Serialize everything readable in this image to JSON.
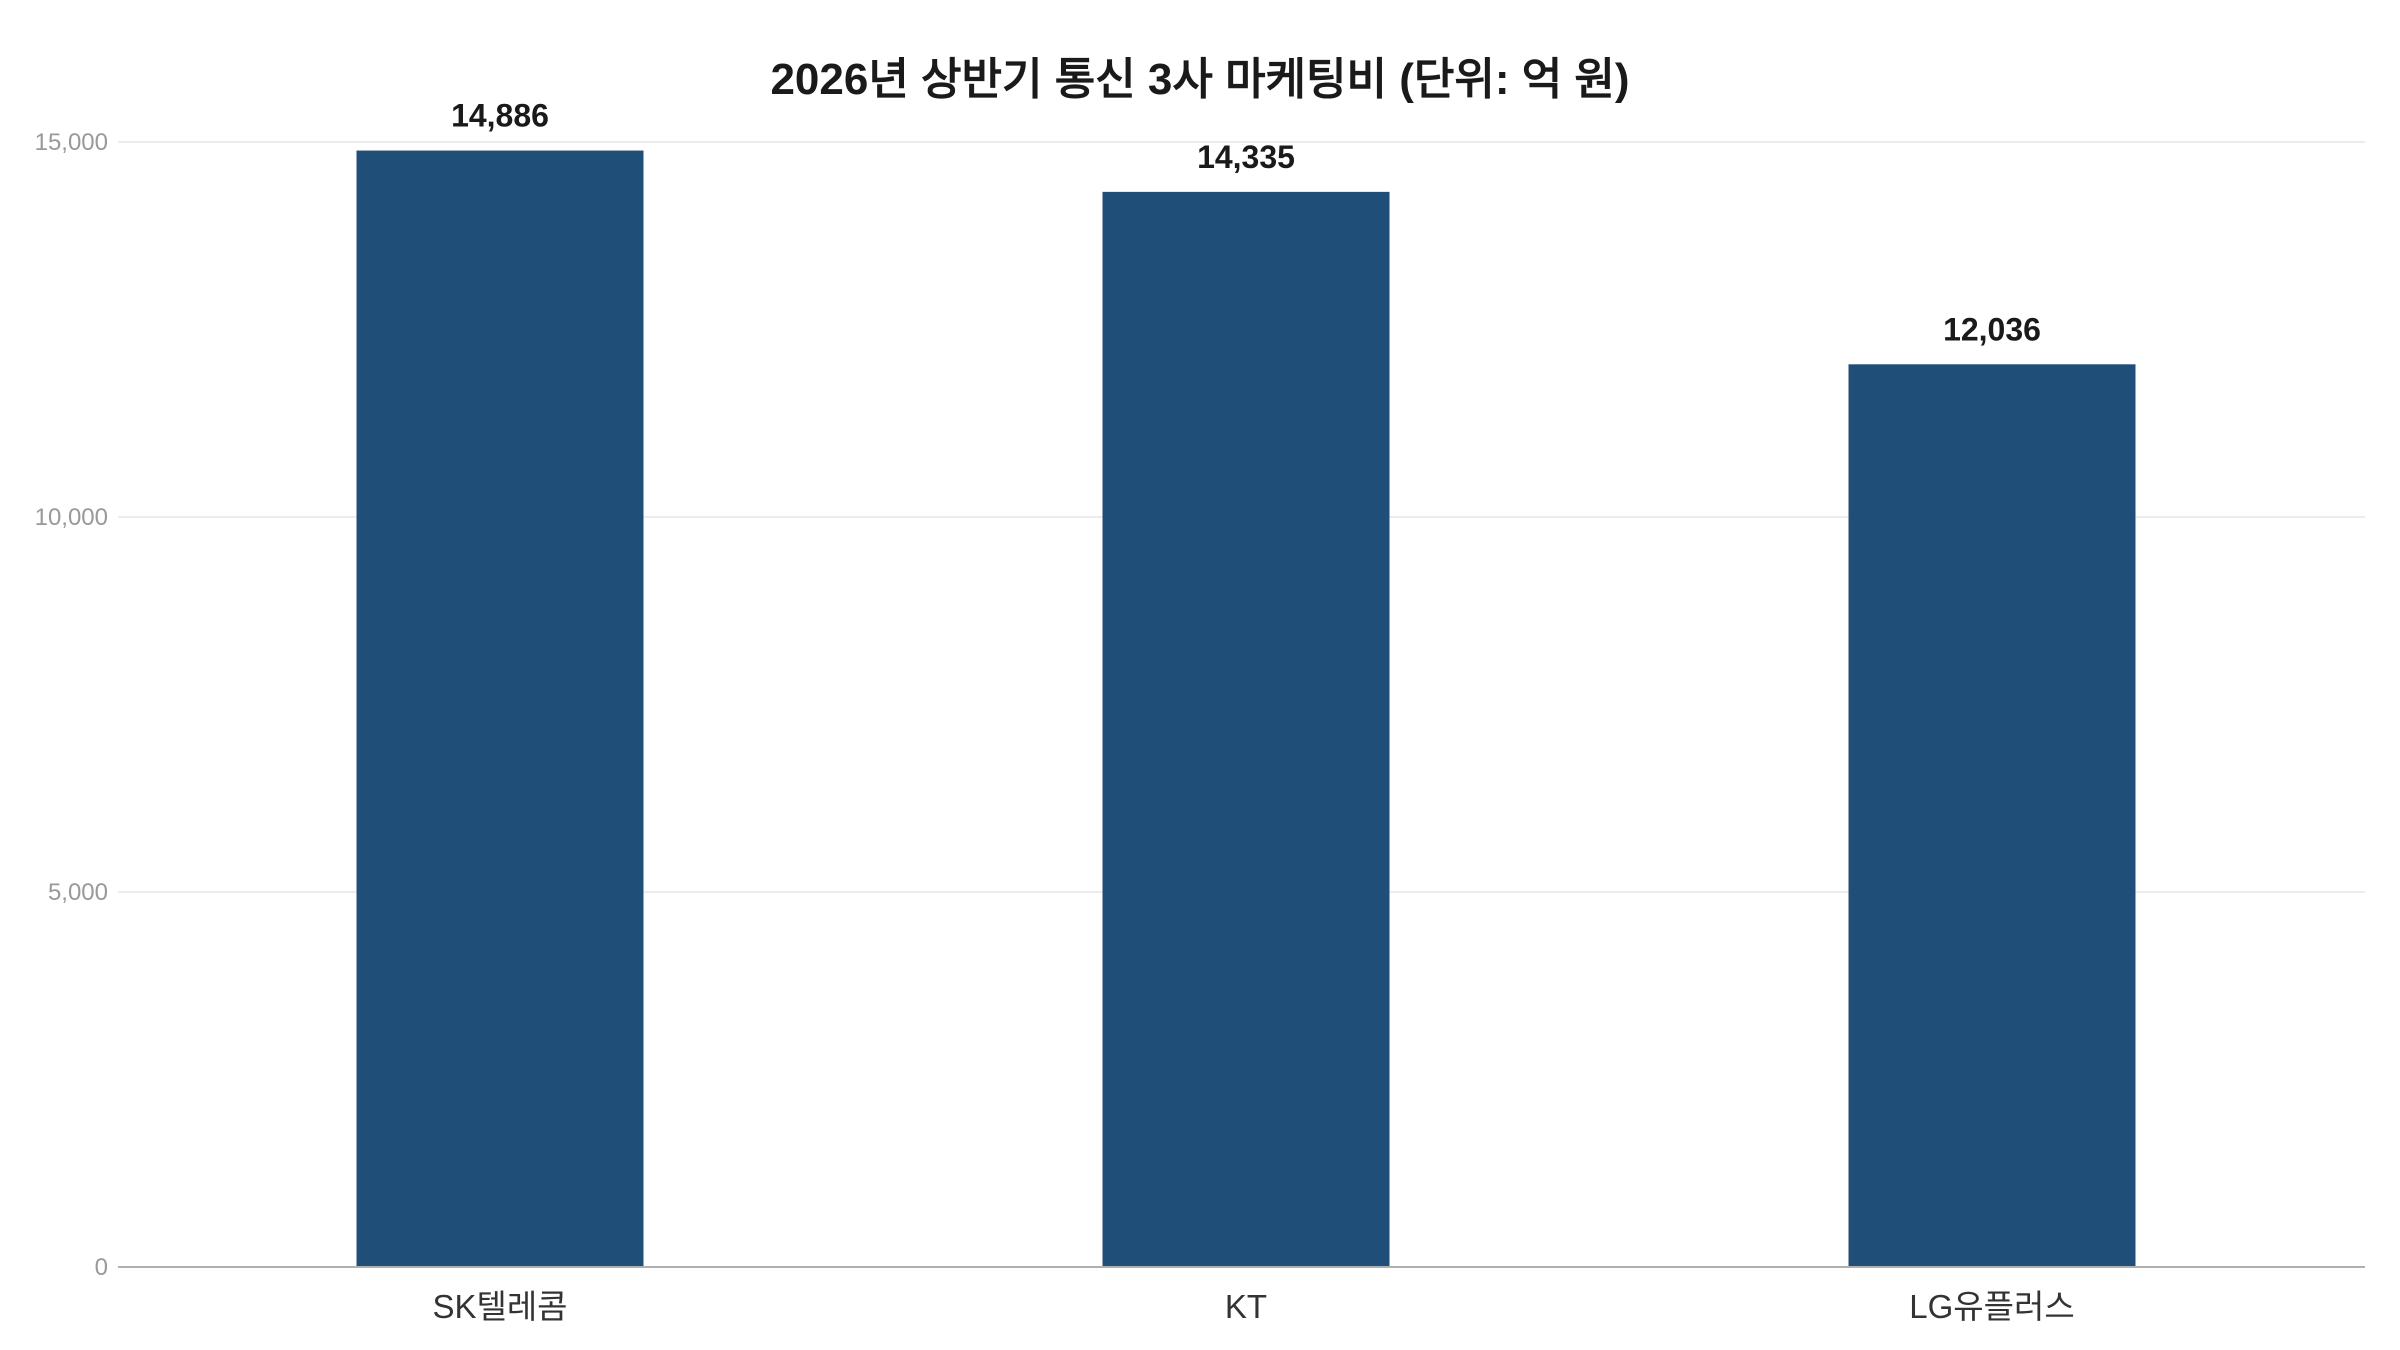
{
  "chart_data": {
    "type": "bar",
    "title": "2026년 상반기 통신 3사 마케팅비 (단위: 억 원)",
    "xlabel": "",
    "ylabel": "",
    "categories": [
      "SK텔레콤",
      "KT",
      "LG유플러스"
    ],
    "values": [
      14886,
      14335,
      12036
    ],
    "value_labels": [
      "14,886",
      "14,335",
      "12,036"
    ],
    "ylim": [
      0,
      15000
    ],
    "yticks": [
      0,
      5000,
      10000,
      15000
    ],
    "ytick_labels": [
      "0",
      "5,000",
      "10,000",
      "15,000"
    ],
    "grid": true,
    "legend": "none",
    "bar_color": "#1f4e79"
  }
}
